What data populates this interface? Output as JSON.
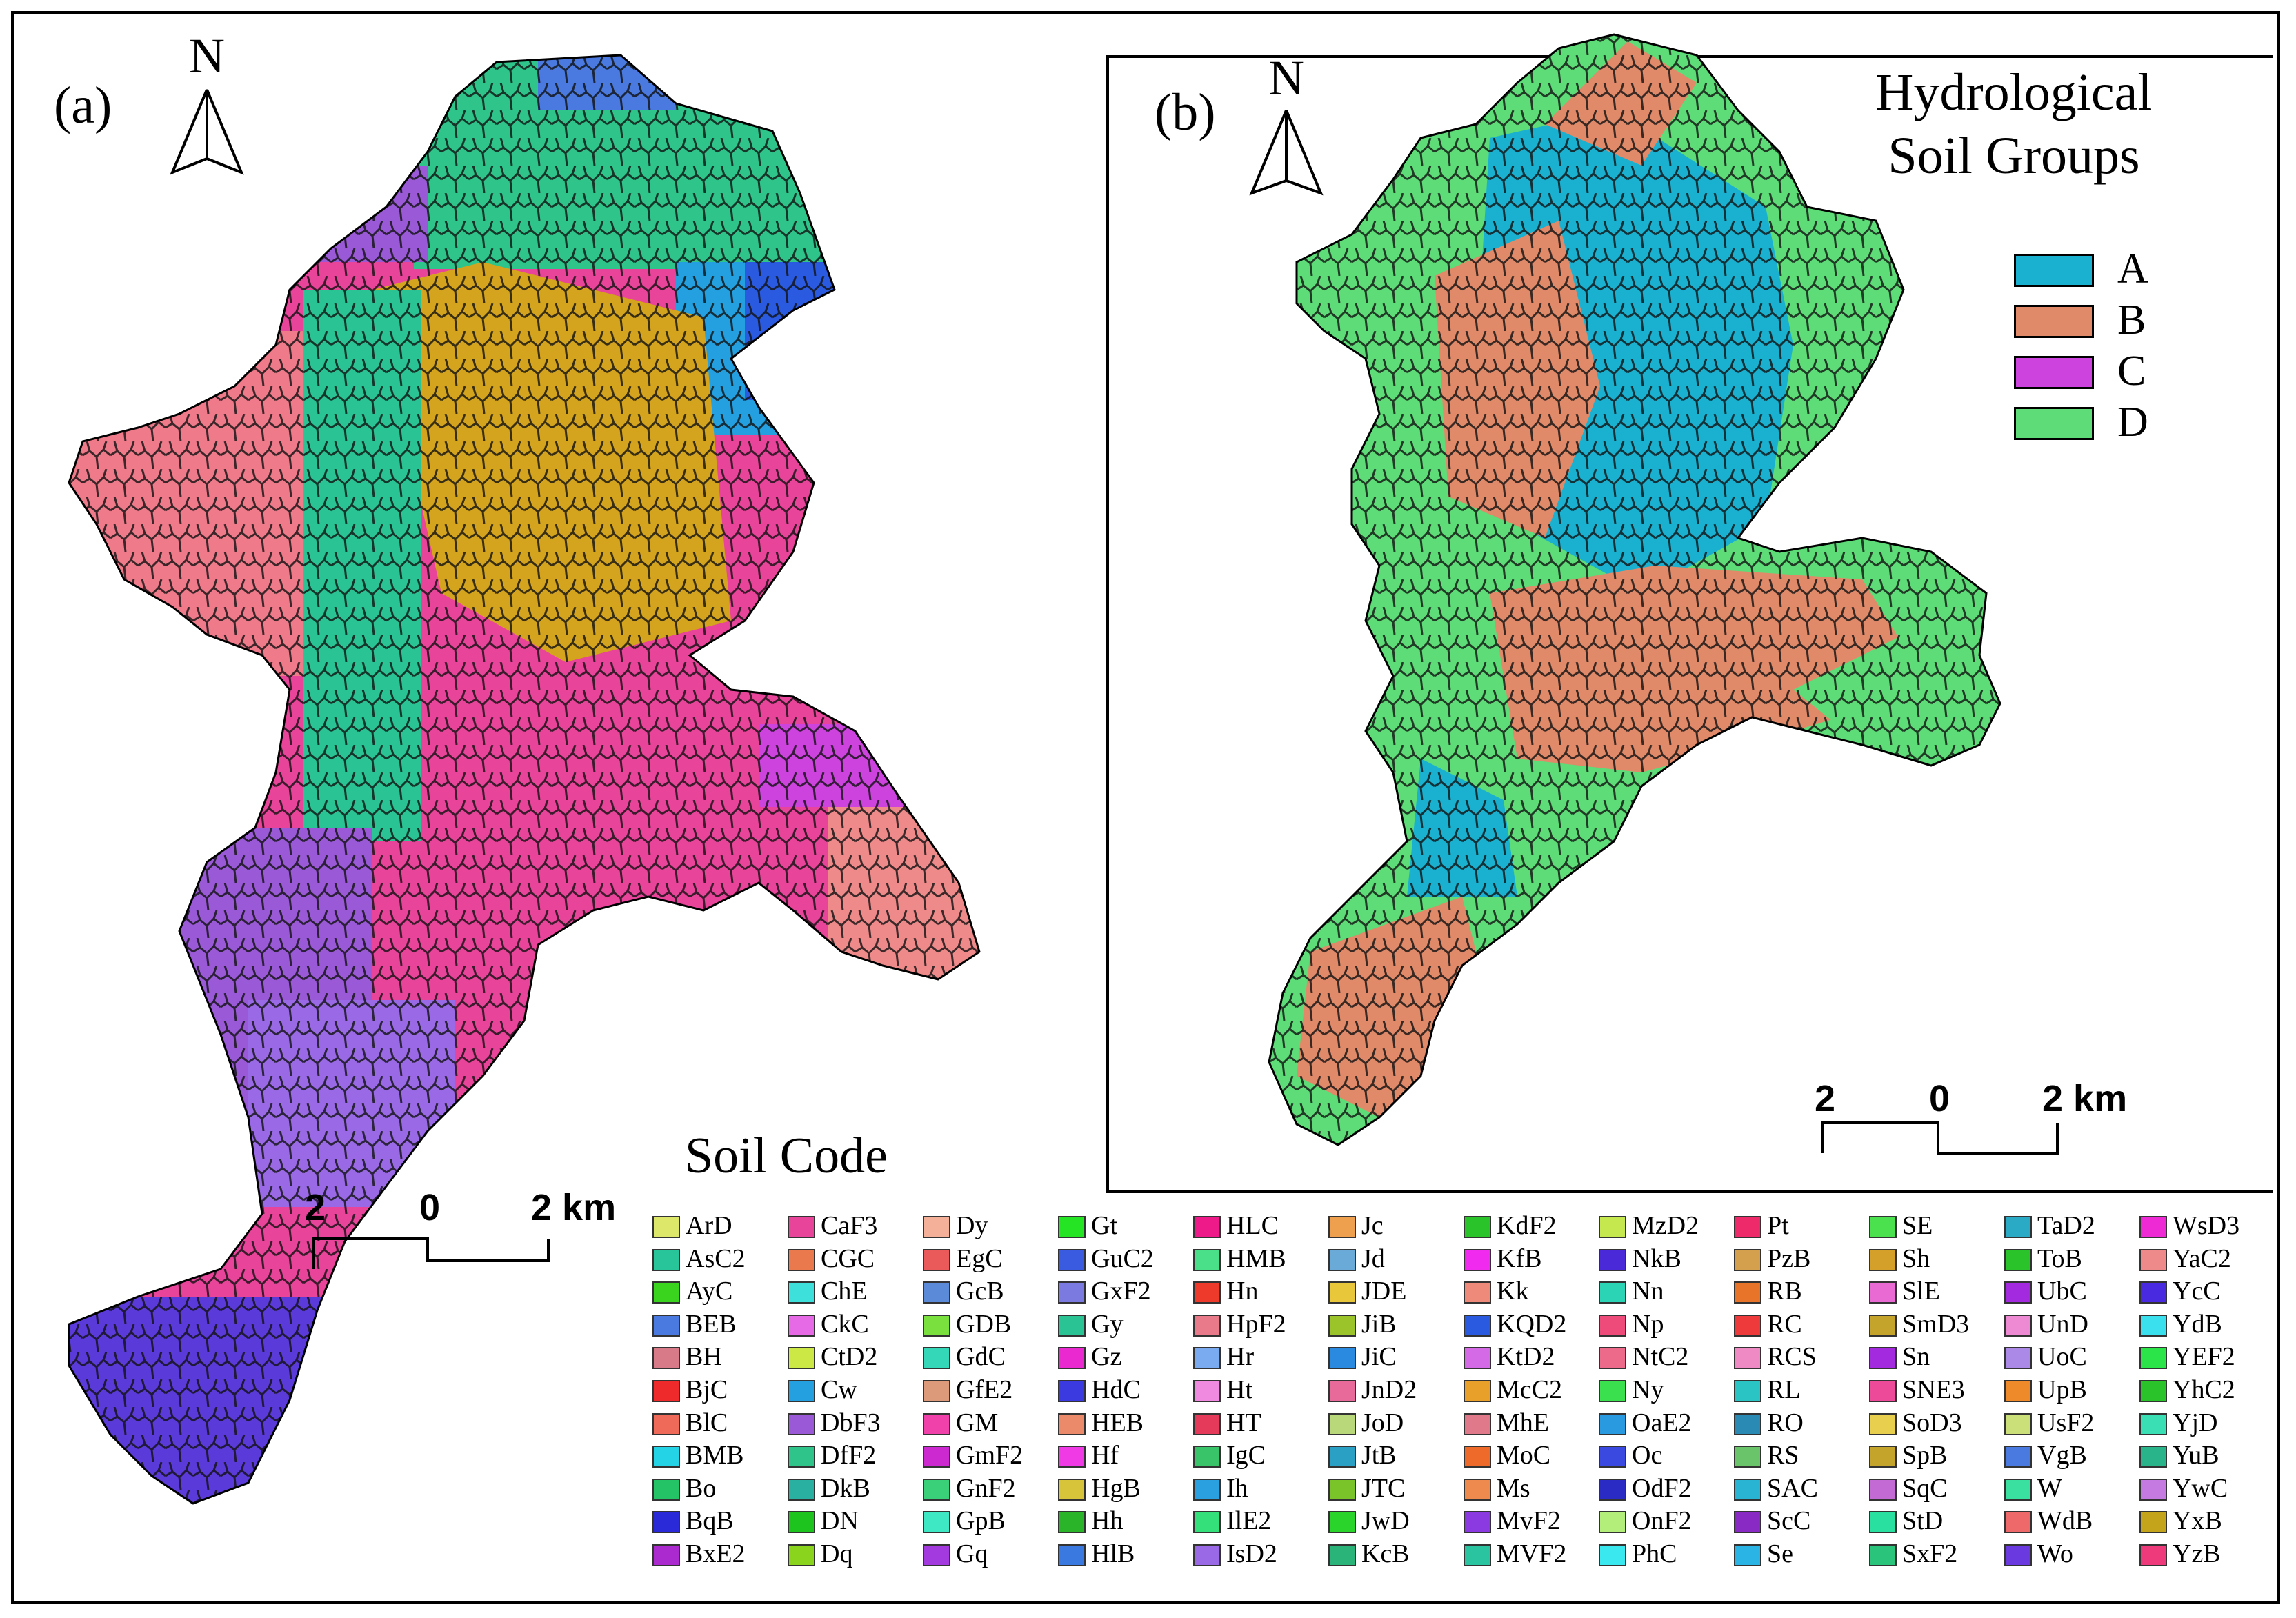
{
  "panel_a": {
    "label": "(a)",
    "north": "N",
    "title": "Soil Code",
    "scale": {
      "left": "2",
      "mid": "0",
      "right": "2 km"
    }
  },
  "panel_b": {
    "label": "(b)",
    "north": "N",
    "title_line1": "Hydrological",
    "title_line2": "Soil Groups",
    "scale": {
      "left": "2",
      "mid": "0",
      "right": "2 km"
    },
    "legend": [
      {
        "label": "A",
        "color": "#1ab0d0"
      },
      {
        "label": "B",
        "color": "#e08a6a"
      },
      {
        "label": "C",
        "color": "#cc44dd"
      },
      {
        "label": "D",
        "color": "#5edc78"
      }
    ]
  },
  "soil_codes": [
    [
      "ArD",
      "#dde86a"
    ],
    [
      "AsC2",
      "#28c49a"
    ],
    [
      "AyC",
      "#3ad41e"
    ],
    [
      "BEB",
      "#4a7ae0"
    ],
    [
      "BH",
      "#d87a88"
    ],
    [
      "BjC",
      "#ee2a2a"
    ],
    [
      "BlC",
      "#f06a5a"
    ],
    [
      "BMB",
      "#24d4e6"
    ],
    [
      "Bo",
      "#24c466"
    ],
    [
      "BqB",
      "#2a2ad8"
    ],
    [
      "BxE2",
      "#aa2ad0"
    ],
    [
      "CaF3",
      "#e8449a"
    ],
    [
      "CGC",
      "#ea7a4e"
    ],
    [
      "ChE",
      "#3ee0dc"
    ],
    [
      "CkC",
      "#e66ae6"
    ],
    [
      "CtD2",
      "#cce844"
    ],
    [
      "Cw",
      "#24a0e0"
    ],
    [
      "DbF3",
      "#9a5ad8"
    ],
    [
      "DfF2",
      "#2ec48a"
    ],
    [
      "DkB",
      "#2ab0a0"
    ],
    [
      "DN",
      "#1ec41e"
    ],
    [
      "Dq",
      "#8ad41e"
    ],
    [
      "Dy",
      "#f4b098"
    ],
    [
      "EgC",
      "#ea5a5a"
    ],
    [
      "GcB",
      "#5a8ad8"
    ],
    [
      "GDB",
      "#7ae03e"
    ],
    [
      "GdC",
      "#34d8b8"
    ],
    [
      "GfE2",
      "#dc9a7a"
    ],
    [
      "GM",
      "#f040aa"
    ],
    [
      "GmF2",
      "#cc2ad0"
    ],
    [
      "GnF2",
      "#3ad07a"
    ],
    [
      "GpB",
      "#3ee8c4"
    ],
    [
      "Gq",
      "#a23ae0"
    ],
    [
      "Gt",
      "#24e424"
    ],
    [
      "GuC2",
      "#3a5ae0"
    ],
    [
      "GxF2",
      "#7a7ae0"
    ],
    [
      "Gy",
      "#2ac494"
    ],
    [
      "Gz",
      "#ea2ad0"
    ],
    [
      "HdC",
      "#3a3ae0"
    ],
    [
      "HEB",
      "#ea8a6a"
    ],
    [
      "Hf",
      "#f03ae6"
    ],
    [
      "HgB",
      "#d8c43a"
    ],
    [
      "Hh",
      "#2ab42a"
    ],
    [
      "HlB",
      "#3a7ae0"
    ],
    [
      "HLC",
      "#ee1a8a"
    ],
    [
      "HMB",
      "#4ae08a"
    ],
    [
      "Hn",
      "#ee3a2a"
    ],
    [
      "HpF2",
      "#e87a8a"
    ],
    [
      "Hr",
      "#7aaaf0"
    ],
    [
      "Ht",
      "#f08ae0"
    ],
    [
      "HT",
      "#e63a5a"
    ],
    [
      "IgC",
      "#3ac46a"
    ],
    [
      "Ih",
      "#2aa0e0"
    ],
    [
      "IlE2",
      "#34e07a"
    ],
    [
      "IsD2",
      "#9a6ae6"
    ],
    [
      "Jc",
      "#eea04e"
    ],
    [
      "Jd",
      "#6aaad8"
    ],
    [
      "JDE",
      "#e8c83a"
    ],
    [
      "JiB",
      "#9ac42a"
    ],
    [
      "JiC",
      "#2a8ae0"
    ],
    [
      "JnD2",
      "#e86a9a"
    ],
    [
      "JoD",
      "#b8d87a"
    ],
    [
      "JtB",
      "#2aa0c4"
    ],
    [
      "JTC",
      "#7ac42a"
    ],
    [
      "JwD",
      "#2ad42a"
    ],
    [
      "KcB",
      "#2ab47a"
    ],
    [
      "KdF2",
      "#2ac42a"
    ],
    [
      "KfB",
      "#f02aee"
    ],
    [
      "Kk",
      "#ee8a7a"
    ],
    [
      "KQD2",
      "#2a5ae0"
    ],
    [
      "KtD2",
      "#d46ae6"
    ],
    [
      "McC2",
      "#e8a02a"
    ],
    [
      "MhE",
      "#e07a8a"
    ],
    [
      "MoC",
      "#ee6a2a"
    ],
    [
      "Ms",
      "#ee8a4e"
    ],
    [
      "MvF2",
      "#8a3ae0"
    ],
    [
      "MVF2",
      "#2ac4a0"
    ],
    [
      "MzD2",
      "#c4e84e"
    ],
    [
      "NkB",
      "#4a2ad8"
    ],
    [
      "Nn",
      "#2ad4b4"
    ],
    [
      "Np",
      "#ee4a7a"
    ],
    [
      "NtC2",
      "#ee6a8a"
    ],
    [
      "Ny",
      "#3ae04e"
    ],
    [
      "OaE2",
      "#2a9ae0"
    ],
    [
      "Oc",
      "#3a4ae0"
    ],
    [
      "OdF2",
      "#2a2ac4"
    ],
    [
      "OnF2",
      "#b4ee7a"
    ],
    [
      "PhC",
      "#3ae8f0"
    ],
    [
      "Pt",
      "#ee2a6a"
    ],
    [
      "PzB",
      "#d4a04e"
    ],
    [
      "RB",
      "#e8742a"
    ],
    [
      "RC",
      "#ee3a3a"
    ],
    [
      "RCS",
      "#f08ac4"
    ],
    [
      "RL",
      "#2ac4c4"
    ],
    [
      "RO",
      "#2a8ab4"
    ],
    [
      "RS",
      "#6ac46a"
    ],
    [
      "SAC",
      "#2ab4d4"
    ],
    [
      "ScC",
      "#8a2ac4"
    ],
    [
      "Se",
      "#2ab4e6"
    ],
    [
      "SE",
      "#4ae04e"
    ],
    [
      "Sh",
      "#d4a02a"
    ],
    [
      "SlE",
      "#ea6ad4"
    ],
    [
      "SmD3",
      "#c4a42a"
    ],
    [
      "Sn",
      "#a42ae0"
    ],
    [
      "SNE3",
      "#ee4a9a"
    ],
    [
      "SoD3",
      "#e8d04e"
    ],
    [
      "SpB",
      "#c4a42a"
    ],
    [
      "SqC",
      "#c46ad4"
    ],
    [
      "StD",
      "#2ae0a0"
    ],
    [
      "SxF2",
      "#2ac47a"
    ],
    [
      "TaD2",
      "#2aaac4"
    ],
    [
      "ToB",
      "#2ac42a"
    ],
    [
      "UbC",
      "#a42ae0"
    ],
    [
      "UnD",
      "#ee8ad4"
    ],
    [
      "UoC",
      "#aa8ae6"
    ],
    [
      "UpB",
      "#ee8a2a"
    ],
    [
      "UsF2",
      "#cce07a"
    ],
    [
      "VgB",
      "#4a7ae0"
    ],
    [
      "W",
      "#3ae0a0"
    ],
    [
      "WdB",
      "#ee6a6a"
    ],
    [
      "Wo",
      "#6a3ae0"
    ],
    [
      "WsD3",
      "#ee2ad4"
    ],
    [
      "YaC2",
      "#ee8a8a"
    ],
    [
      "YcC",
      "#4a2ae0"
    ],
    [
      "YdB",
      "#3ae0ee"
    ],
    [
      "YEF2",
      "#2ae44a"
    ],
    [
      "YhC2",
      "#2ac42a"
    ],
    [
      "YjD",
      "#3ae0b4"
    ],
    [
      "YuB",
      "#2ab48a"
    ],
    [
      "YwC",
      "#c47ae0"
    ],
    [
      "YxB",
      "#c4a41a"
    ],
    [
      "YzB",
      "#ee3a7a"
    ]
  ]
}
